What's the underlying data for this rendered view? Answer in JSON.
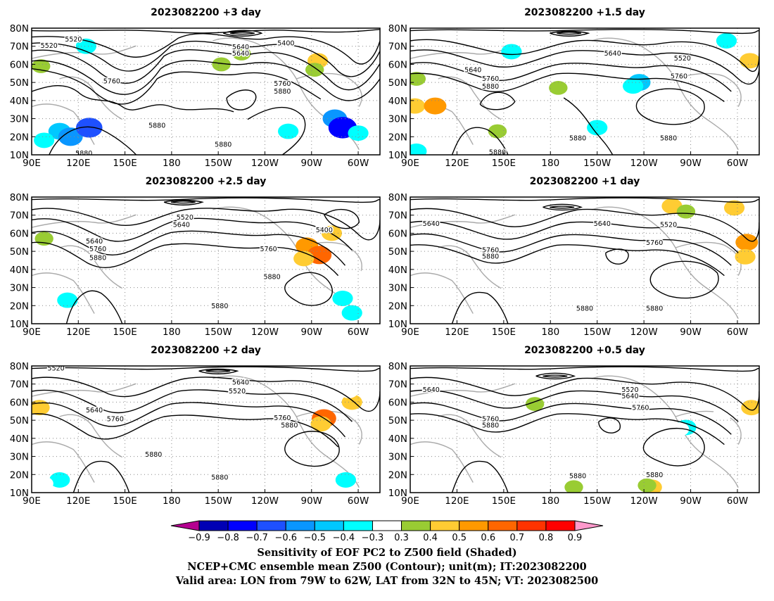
{
  "panels": [
    {
      "title": "2023082200 +3 day",
      "contour_labels": [
        "5520",
        "5640",
        "5400",
        "5520",
        "5640",
        "5760",
        "5760",
        "5880",
        "5880",
        "5880",
        "5880"
      ],
      "shading": [
        {
          "lon": 125,
          "lat": 70,
          "value": -0.4
        },
        {
          "lon": 108,
          "lat": 23,
          "value": -0.5
        },
        {
          "lon": 115,
          "lat": 20,
          "value": -0.6
        },
        {
          "lon": 98,
          "lat": 18,
          "value": -0.4
        },
        {
          "lon": 127,
          "lat": 25,
          "value": -0.7
        },
        {
          "lon": 255,
          "lat": 23,
          "value": -0.4
        },
        {
          "lon": 285,
          "lat": 30,
          "value": -0.6
        },
        {
          "lon": 290,
          "lat": 25,
          "value": -0.8
        },
        {
          "lon": 300,
          "lat": 22,
          "value": -0.4
        },
        {
          "lon": 274,
          "lat": 62,
          "value": 0.4
        },
        {
          "lon": 272,
          "lat": 57,
          "value": 0.3
        },
        {
          "lon": 212,
          "lat": 60,
          "value": 0.3
        },
        {
          "lon": 225,
          "lat": 66,
          "value": 0.3
        },
        {
          "lon": 96,
          "lat": 59,
          "value": 0.3
        }
      ]
    },
    {
      "title": "2023082200 +1.5 day",
      "contour_labels": [
        "5640",
        "5520",
        "5640",
        "5760",
        "5880",
        "5760",
        "5880",
        "5880",
        "5880"
      ],
      "shading": [
        {
          "lon": 93,
          "lat": 37,
          "value": 0.4
        },
        {
          "lon": 106,
          "lat": 37,
          "value": 0.5
        },
        {
          "lon": 94,
          "lat": 52,
          "value": 0.3
        },
        {
          "lon": 237,
          "lat": 50,
          "value": -0.5
        },
        {
          "lon": 233,
          "lat": 48,
          "value": -0.4
        },
        {
          "lon": 185,
          "lat": 47,
          "value": 0.3
        },
        {
          "lon": 308,
          "lat": 62,
          "value": 0.4
        },
        {
          "lon": 146,
          "lat": 23,
          "value": 0.3
        },
        {
          "lon": 94,
          "lat": 12,
          "value": -0.4
        },
        {
          "lon": 155,
          "lat": 67,
          "value": -0.4
        },
        {
          "lon": 293,
          "lat": 73,
          "value": -0.4
        },
        {
          "lon": 210,
          "lat": 25,
          "value": -0.4
        }
      ]
    },
    {
      "title": "2023082200 +2.5 day",
      "contour_labels": [
        "5520",
        "5640",
        "5400",
        "5640",
        "5760",
        "5760",
        "5880",
        "5880",
        "5880"
      ],
      "shading": [
        {
          "lon": 267,
          "lat": 53,
          "value": 0.5
        },
        {
          "lon": 275,
          "lat": 48,
          "value": 0.6
        },
        {
          "lon": 265,
          "lat": 46,
          "value": 0.4
        },
        {
          "lon": 283,
          "lat": 60,
          "value": 0.4
        },
        {
          "lon": 98,
          "lat": 57,
          "value": 0.3
        },
        {
          "lon": 113,
          "lat": 23,
          "value": -0.4
        },
        {
          "lon": 103,
          "lat": 17,
          "value": -0.3
        },
        {
          "lon": 290,
          "lat": 24,
          "value": -0.4
        },
        {
          "lon": 296,
          "lat": 16,
          "value": -0.4
        },
        {
          "lon": 297,
          "lat": 37,
          "value": -0.3
        }
      ]
    },
    {
      "title": "2023082200 +1 day",
      "contour_labels": [
        "5640",
        "5640",
        "5520",
        "5760",
        "5760",
        "5880",
        "5880",
        "5880"
      ],
      "shading": [
        {
          "lon": 258,
          "lat": 75,
          "value": 0.4
        },
        {
          "lon": 267,
          "lat": 72,
          "value": 0.3
        },
        {
          "lon": 298,
          "lat": 74,
          "value": 0.4
        },
        {
          "lon": 306,
          "lat": 55,
          "value": 0.5
        },
        {
          "lon": 305,
          "lat": 47,
          "value": 0.4
        },
        {
          "lon": 235,
          "lat": 34,
          "value": -0.3
        },
        {
          "lon": 186,
          "lat": 18,
          "value": -0.3
        },
        {
          "lon": 225,
          "lat": 19,
          "value": -0.3
        }
      ]
    },
    {
      "title": "2023082200 +2 day",
      "contour_labels": [
        "5520",
        "5640",
        "5520",
        "5640",
        "5760",
        "5760",
        "5880",
        "5880",
        "5880"
      ],
      "shading": [
        {
          "lon": 278,
          "lat": 51,
          "value": 0.6
        },
        {
          "lon": 276,
          "lat": 48,
          "value": 0.4
        },
        {
          "lon": 296,
          "lat": 60,
          "value": 0.4
        },
        {
          "lon": 95,
          "lat": 57,
          "value": 0.4
        },
        {
          "lon": 108,
          "lat": 17,
          "value": -0.4
        },
        {
          "lon": 98,
          "lat": 15,
          "value": -0.3
        },
        {
          "lon": 292,
          "lat": 17,
          "value": -0.4
        },
        {
          "lon": 294,
          "lat": 66,
          "value": -0.3
        },
        {
          "lon": 216,
          "lat": 46,
          "value": -0.3
        }
      ]
    },
    {
      "title": "2023082200 +0.5 day",
      "contour_labels": [
        "5640",
        "5520",
        "5640",
        "5760",
        "5760",
        "5880",
        "5880",
        "5880"
      ],
      "shading": [
        {
          "lon": 267,
          "lat": 46,
          "value": -0.4
        },
        {
          "lon": 263,
          "lat": 45,
          "value": -0.3
        },
        {
          "lon": 245,
          "lat": 13,
          "value": 0.4
        },
        {
          "lon": 242,
          "lat": 14,
          "value": 0.3
        },
        {
          "lon": 309,
          "lat": 57,
          "value": 0.4
        },
        {
          "lon": 195,
          "lat": 13,
          "value": 0.3
        },
        {
          "lon": 140,
          "lat": 58,
          "value": -0.3
        },
        {
          "lon": 290,
          "lat": 53,
          "value": -0.3
        },
        {
          "lon": 170,
          "lat": 59,
          "value": 0.3
        }
      ]
    }
  ],
  "axes": {
    "lat_labels": [
      "80N",
      "70N",
      "60N",
      "50N",
      "40N",
      "30N",
      "20N",
      "10N"
    ],
    "lon_labels": [
      "90E",
      "120E",
      "150E",
      "180",
      "150W",
      "120W",
      "90W",
      "60W"
    ],
    "lat_values": [
      80,
      70,
      60,
      50,
      40,
      30,
      20,
      10
    ],
    "lon_values": [
      90,
      120,
      150,
      180,
      210,
      240,
      270,
      300
    ],
    "lon_range": [
      90,
      314
    ],
    "lat_range": [
      10,
      80
    ]
  },
  "colorbar": {
    "tick_labels": [
      "−0.9",
      "−0.8",
      "−0.7",
      "−0.6",
      "−0.5",
      "−0.4",
      "−0.3",
      "0.3",
      "0.4",
      "0.5",
      "0.6",
      "0.7",
      "0.8",
      "0.9"
    ],
    "colors": [
      "#b40090",
      "#0000b4",
      "#0000ff",
      "#1e50ff",
      "#0a96ff",
      "#00c8ff",
      "#00ffff",
      "#ffffff",
      "#99cc33",
      "#ffcc33",
      "#ff9900",
      "#ff6600",
      "#ff3300",
      "#ff0000",
      "#ff99cc"
    ]
  },
  "caption": {
    "line1": "Sensitivity of EOF PC2 to Z500 field (Shaded)",
    "line2": "NCEP+CMC ensemble mean Z500 (Contour); unit(m); IT:2023082200",
    "line3": "Valid area: LON from 79W to 62W, LAT from 32N to 45N; VT: 2023082500"
  }
}
